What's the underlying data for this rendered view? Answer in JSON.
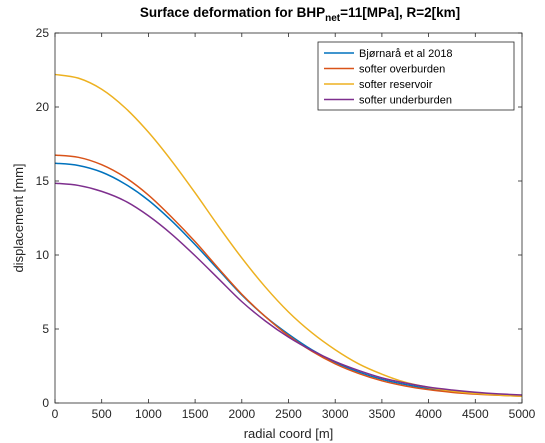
{
  "chart_data": {
    "type": "line",
    "title": {
      "prefix": "Surface deformation for BHP",
      "subscript": "net",
      "suffix": "=11[MPa], R=2[km]"
    },
    "xlabel": "radial coord [m]",
    "ylabel": "displacement [mm]",
    "xlim": [
      0,
      5000
    ],
    "ylim": [
      0,
      25
    ],
    "xticks": [
      0,
      500,
      1000,
      1500,
      2000,
      2500,
      3000,
      3500,
      4000,
      4500,
      5000
    ],
    "yticks": [
      0,
      5,
      10,
      15,
      20,
      25
    ],
    "grid": false,
    "legend_position": "top-right",
    "x": [
      0,
      250,
      500,
      750,
      1000,
      1250,
      1500,
      1750,
      2000,
      2250,
      2500,
      2750,
      3000,
      3250,
      3500,
      3750,
      4000,
      4250,
      4500,
      4750,
      5000
    ],
    "series": [
      {
        "name": "Bjørnarå et al 2018",
        "color": "#0072BD",
        "values": [
          16.2,
          16.05,
          15.6,
          14.8,
          13.7,
          12.3,
          10.7,
          9.0,
          7.3,
          5.85,
          4.65,
          3.6,
          2.75,
          2.1,
          1.6,
          1.25,
          0.98,
          0.8,
          0.66,
          0.56,
          0.48
        ]
      },
      {
        "name": "softer overburden",
        "color": "#D95319",
        "values": [
          16.75,
          16.6,
          16.1,
          15.25,
          14.05,
          12.55,
          10.9,
          9.1,
          7.35,
          5.85,
          4.55,
          3.5,
          2.65,
          2.0,
          1.5,
          1.15,
          0.9,
          0.72,
          0.6,
          0.52,
          0.46
        ]
      },
      {
        "name": "softer reservoir",
        "color": "#EDB120",
        "values": [
          22.2,
          21.95,
          21.2,
          19.95,
          18.3,
          16.35,
          14.2,
          11.95,
          9.8,
          7.85,
          6.15,
          4.75,
          3.6,
          2.65,
          1.95,
          1.4,
          1.05,
          0.8,
          0.64,
          0.53,
          0.46
        ]
      },
      {
        "name": "softer underburden",
        "color": "#7E2F8E",
        "values": [
          14.85,
          14.7,
          14.3,
          13.65,
          12.65,
          11.4,
          9.95,
          8.4,
          6.85,
          5.55,
          4.45,
          3.55,
          2.8,
          2.2,
          1.7,
          1.35,
          1.07,
          0.88,
          0.73,
          0.62,
          0.54
        ]
      }
    ]
  }
}
